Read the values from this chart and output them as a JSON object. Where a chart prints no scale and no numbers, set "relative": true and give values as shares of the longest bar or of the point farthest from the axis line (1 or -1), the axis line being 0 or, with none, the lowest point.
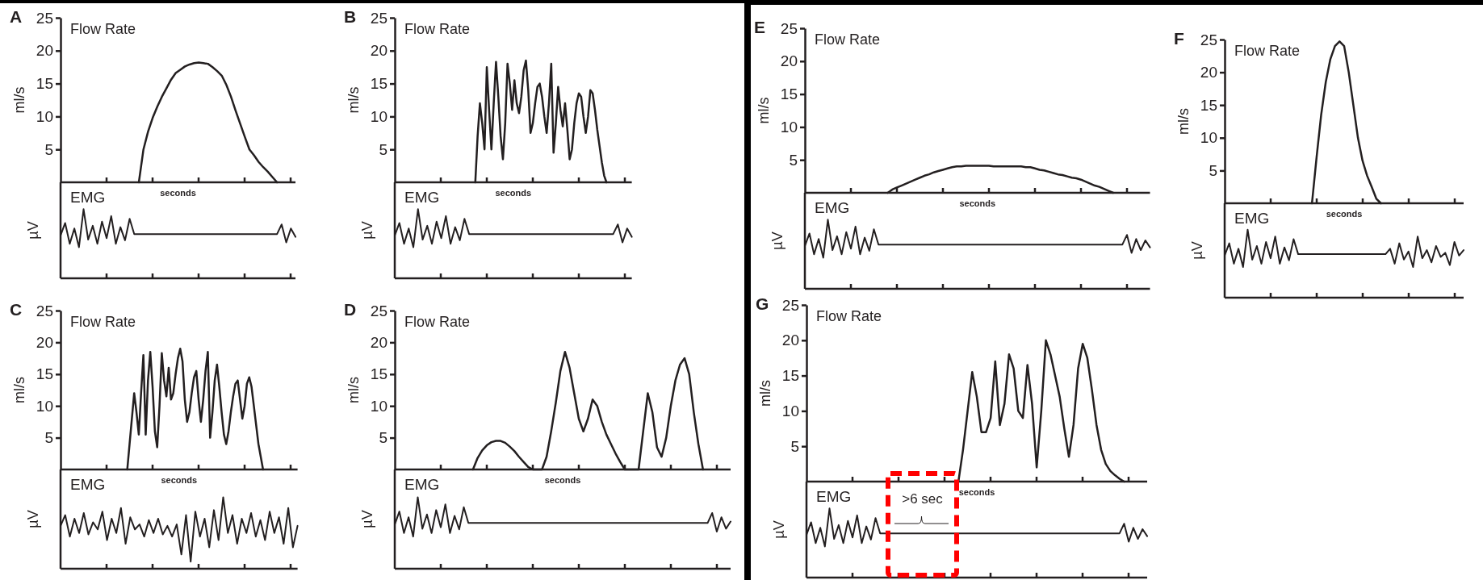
{
  "chart_data": [
    {
      "type": "line",
      "title": "A",
      "subtitle": "Flow Rate",
      "xlabel": "seconds",
      "ylabel": "ml/s",
      "ylim": [
        0,
        25
      ],
      "yticks": [
        5,
        10,
        15,
        20,
        25
      ],
      "tick_labels": "y",
      "categories": [
        null,
        null,
        null,
        null,
        null,
        null,
        null,
        null,
        null,
        null,
        null,
        null,
        null,
        null,
        null,
        null,
        null,
        null,
        null,
        null,
        null,
        null,
        null,
        null,
        null,
        null,
        null,
        null,
        null,
        null,
        null,
        null,
        null,
        null,
        null,
        null,
        null,
        null,
        null,
        null,
        null,
        null,
        null,
        null,
        null,
        null,
        null,
        null,
        null,
        null,
        null,
        null
      ],
      "series": [
        {
          "color": "#231f20",
          "values": [
            null,
            null,
            null,
            null,
            null,
            null,
            null,
            null,
            null,
            null,
            null,
            null,
            null,
            null,
            null,
            null,
            null,
            0,
            5,
            7.7,
            9.8,
            11.5,
            13,
            14.3,
            15.6,
            16.6,
            17.1,
            17.6,
            17.9,
            18.1,
            18.2,
            18.1,
            18,
            17.5,
            16.9,
            16.2,
            14.8,
            13,
            10.9,
            8.9,
            6.9,
            5,
            4.1,
            3.1,
            2.3,
            1.6,
            0.8,
            0,
            null,
            null,
            null,
            null
          ]
        }
      ]
    },
    {
      "type": "line",
      "title": "EMG",
      "ylabel": "µV",
      "relative": true,
      "tick_labels": false,
      "categories": [
        null,
        null,
        null,
        null,
        null,
        null,
        null,
        null,
        null,
        null,
        null,
        null,
        null,
        null,
        null,
        null,
        null,
        null,
        null,
        null,
        null,
        null,
        null,
        null,
        null,
        null,
        null,
        null,
        null,
        null,
        null,
        null,
        null,
        null,
        null,
        null,
        null,
        null,
        null,
        null,
        null,
        null,
        null,
        null,
        null,
        null,
        null,
        null,
        null,
        null,
        null,
        null
      ],
      "series": [
        {
          "color": "#231f20",
          "values": [
            0.62,
            0.8,
            0.5,
            0.72,
            0.45,
            1.0,
            0.56,
            0.76,
            0.5,
            0.82,
            0.58,
            0.9,
            0.5,
            0.74,
            0.55,
            0.86,
            0.64,
            0.64,
            0.64,
            0.64,
            0.64,
            0.64,
            0.64,
            0.64,
            0.64,
            0.64,
            0.64,
            0.64,
            0.64,
            0.64,
            0.64,
            0.64,
            0.64,
            0.64,
            0.64,
            0.64,
            0.64,
            0.64,
            0.64,
            0.64,
            0.64,
            0.64,
            0.64,
            0.64,
            0.64,
            0.64,
            0.64,
            0.64,
            0.78,
            0.52,
            0.72,
            0.6
          ]
        }
      ]
    },
    {
      "type": "line",
      "title": "B",
      "subtitle": "Flow Rate",
      "xlabel": "seconds",
      "ylabel": "ml/s",
      "ylim": [
        0,
        25
      ],
      "yticks": [
        5,
        10,
        15,
        20,
        25
      ],
      "tick_labels": "y",
      "categories": [
        null,
        null,
        null,
        null,
        null,
        null,
        null,
        null,
        null,
        null,
        null,
        null,
        null,
        null,
        null,
        null,
        null,
        null,
        null,
        null,
        null,
        null,
        null,
        null,
        null,
        null,
        null,
        null,
        null,
        null,
        null,
        null,
        null,
        null,
        null,
        null,
        null,
        null,
        null,
        null,
        null,
        null,
        null,
        null,
        null,
        null,
        null,
        null,
        null,
        null,
        null,
        null,
        null,
        null,
        null,
        null,
        null,
        null,
        null,
        null,
        null,
        null,
        null,
        null,
        null,
        null,
        null,
        null,
        null,
        null,
        null,
        null,
        null,
        null,
        null,
        null,
        null,
        null,
        null,
        null,
        null,
        null,
        null,
        null,
        null,
        null,
        null,
        null,
        null,
        null,
        null,
        null,
        null,
        null,
        null,
        null,
        null,
        null,
        null,
        null,
        null,
        null,
        null,
        null
      ],
      "series": [
        {
          "color": "#231f20",
          "values": [
            null,
            null,
            null,
            null,
            null,
            null,
            null,
            null,
            null,
            null,
            null,
            null,
            null,
            null,
            null,
            null,
            null,
            null,
            null,
            null,
            null,
            null,
            null,
            null,
            null,
            null,
            null,
            null,
            null,
            null,
            null,
            null,
            null,
            null,
            null,
            0,
            7,
            12,
            9,
            5,
            17.5,
            11,
            5,
            12,
            18.3,
            13,
            7,
            3.5,
            9,
            18,
            15,
            11,
            15.5,
            12,
            10.5,
            13,
            17,
            18.5,
            14,
            7.5,
            9,
            12,
            14.5,
            15,
            13,
            10,
            7.5,
            12,
            18,
            4.5,
            9,
            14.5,
            11,
            8.5,
            12,
            8,
            3.5,
            5,
            9,
            12,
            13.5,
            13,
            10,
            7.5,
            10,
            14,
            13.5,
            11,
            8,
            5.5,
            3,
            1,
            0,
            null,
            null,
            null,
            null,
            null,
            null,
            null,
            null,
            null,
            null,
            null
          ]
        }
      ]
    },
    {
      "type": "line",
      "title": "EMG",
      "ylabel": "µV",
      "relative": true,
      "tick_labels": false,
      "categories": [
        null,
        null,
        null,
        null,
        null,
        null,
        null,
        null,
        null,
        null,
        null,
        null,
        null,
        null,
        null,
        null,
        null,
        null,
        null,
        null,
        null,
        null,
        null,
        null,
        null,
        null,
        null,
        null,
        null,
        null,
        null,
        null,
        null,
        null,
        null,
        null,
        null,
        null,
        null,
        null,
        null,
        null,
        null,
        null,
        null,
        null,
        null,
        null,
        null,
        null,
        null,
        null
      ],
      "series": [
        {
          "color": "#231f20",
          "values": [
            0.62,
            0.8,
            0.5,
            0.72,
            0.45,
            1.0,
            0.56,
            0.76,
            0.5,
            0.82,
            0.58,
            0.9,
            0.5,
            0.74,
            0.55,
            0.86,
            0.64,
            0.64,
            0.64,
            0.64,
            0.64,
            0.64,
            0.64,
            0.64,
            0.64,
            0.64,
            0.64,
            0.64,
            0.64,
            0.64,
            0.64,
            0.64,
            0.64,
            0.64,
            0.64,
            0.64,
            0.64,
            0.64,
            0.64,
            0.64,
            0.64,
            0.64,
            0.64,
            0.64,
            0.64,
            0.64,
            0.64,
            0.64,
            0.78,
            0.52,
            0.72,
            0.6
          ]
        }
      ]
    },
    {
      "type": "line",
      "title": "C",
      "subtitle": "Flow Rate",
      "xlabel": "seconds",
      "ylabel": "ml/s",
      "ylim": [
        0,
        25
      ],
      "yticks": [
        5,
        10,
        15,
        20,
        25
      ],
      "tick_labels": "y",
      "categories": [
        null,
        null,
        null,
        null,
        null,
        null,
        null,
        null,
        null,
        null,
        null,
        null,
        null,
        null,
        null,
        null,
        null,
        null,
        null,
        null,
        null,
        null,
        null,
        null,
        null,
        null,
        null,
        null,
        null,
        null,
        null,
        null,
        null,
        null,
        null,
        null,
        null,
        null,
        null,
        null,
        null,
        null,
        null,
        null,
        null,
        null,
        null,
        null,
        null,
        null,
        null,
        null,
        null,
        null,
        null,
        null,
        null,
        null,
        null,
        null,
        null,
        null,
        null,
        null,
        null,
        null,
        null,
        null,
        null,
        null,
        null,
        null,
        null,
        null,
        null,
        null,
        null,
        null,
        null,
        null,
        null,
        null,
        null,
        null,
        null,
        null,
        null,
        null,
        null,
        null,
        null,
        null,
        null,
        null,
        null,
        null,
        null,
        null,
        null,
        null,
        null,
        null,
        null,
        null
      ],
      "series": [
        {
          "color": "#231f20",
          "values": [
            null,
            null,
            null,
            null,
            null,
            null,
            null,
            null,
            null,
            null,
            null,
            null,
            null,
            null,
            null,
            null,
            null,
            null,
            null,
            null,
            null,
            null,
            null,
            null,
            null,
            null,
            null,
            null,
            null,
            0,
            4,
            8,
            12,
            9,
            5.5,
            12,
            18,
            5.5,
            14,
            18.5,
            13,
            6,
            3.5,
            10,
            18.3,
            14,
            11.5,
            16,
            11,
            12,
            15,
            17.5,
            19,
            17,
            11,
            7.5,
            9,
            12,
            14.5,
            15.5,
            11,
            7.5,
            11,
            15.5,
            18.5,
            5,
            9,
            14,
            16.5,
            13,
            9,
            5.5,
            4,
            6,
            9,
            11.5,
            13.5,
            14,
            11,
            8,
            10,
            13.5,
            14.5,
            13,
            10,
            7,
            4,
            2,
            0,
            null,
            null,
            null,
            null,
            null,
            null,
            null,
            null,
            null,
            null,
            null,
            null,
            null,
            null,
            null
          ]
        }
      ]
    },
    {
      "type": "line",
      "title": "EMG",
      "ylabel": "µV",
      "relative": true,
      "tick_labels": false,
      "categories": [
        null,
        null,
        null,
        null,
        null,
        null,
        null,
        null,
        null,
        null,
        null,
        null,
        null,
        null,
        null,
        null,
        null,
        null,
        null,
        null,
        null,
        null,
        null,
        null,
        null,
        null,
        null,
        null,
        null,
        null,
        null,
        null,
        null,
        null,
        null,
        null,
        null,
        null,
        null,
        null,
        null,
        null,
        null,
        null,
        null,
        null,
        null,
        null,
        null,
        null,
        null,
        null
      ],
      "series": [
        {
          "color": "#231f20",
          "values": [
            0.6,
            0.75,
            0.45,
            0.7,
            0.5,
            0.78,
            0.48,
            0.65,
            0.55,
            0.8,
            0.4,
            0.7,
            0.5,
            0.85,
            0.35,
            0.72,
            0.55,
            0.62,
            0.45,
            0.68,
            0.5,
            0.7,
            0.48,
            0.6,
            0.45,
            0.62,
            0.2,
            0.75,
            0.1,
            0.8,
            0.45,
            0.7,
            0.3,
            0.82,
            0.4,
            1.0,
            0.5,
            0.75,
            0.35,
            0.7,
            0.5,
            0.78,
            0.45,
            0.68,
            0.4,
            0.8,
            0.5,
            0.72,
            0.35,
            0.85,
            0.3,
            0.6
          ]
        }
      ]
    },
    {
      "type": "line",
      "title": "D",
      "subtitle": "Flow Rate",
      "xlabel": "seconds",
      "ylabel": "ml/s",
      "ylim": [
        0,
        25
      ],
      "yticks": [
        5,
        10,
        15,
        20,
        25
      ],
      "tick_labels": "y",
      "categories": [
        null,
        null,
        null,
        null,
        null,
        null,
        null,
        null,
        null,
        null,
        null,
        null,
        null,
        null,
        null,
        null,
        null,
        null,
        null,
        null,
        null,
        null,
        null,
        null,
        null,
        null,
        null,
        null,
        null,
        null,
        null,
        null,
        null,
        null,
        null,
        null,
        null,
        null,
        null,
        null,
        null,
        null,
        null,
        null,
        null,
        null,
        null,
        null,
        null,
        null,
        null,
        null,
        null,
        null,
        null,
        null,
        null,
        null,
        null,
        null,
        null,
        null,
        null,
        null,
        null,
        null,
        null,
        null,
        null,
        null,
        null,
        null,
        null,
        null
      ],
      "series": [
        {
          "color": "#231f20",
          "values": [
            null,
            null,
            null,
            null,
            null,
            null,
            null,
            null,
            null,
            null,
            null,
            null,
            null,
            null,
            null,
            null,
            null,
            0,
            1.8,
            3,
            3.8,
            4.3,
            4.5,
            4.5,
            4.2,
            3.6,
            2.9,
            2,
            1.2,
            0.4,
            0,
            0,
            0,
            2,
            6,
            10.5,
            15.5,
            18.5,
            16,
            12,
            8,
            6,
            8,
            11,
            10,
            7.5,
            5.5,
            4,
            2.5,
            1.2,
            0,
            0,
            0,
            0,
            6,
            12,
            9,
            3.5,
            2,
            5,
            10,
            14,
            16.5,
            17.5,
            15,
            9,
            4,
            0,
            null,
            null,
            null,
            null,
            null,
            null
          ]
        }
      ]
    },
    {
      "type": "line",
      "title": "EMG",
      "ylabel": "µV",
      "relative": true,
      "tick_labels": false,
      "categories": [
        null,
        null,
        null,
        null,
        null,
        null,
        null,
        null,
        null,
        null,
        null,
        null,
        null,
        null,
        null,
        null,
        null,
        null,
        null,
        null,
        null,
        null,
        null,
        null,
        null,
        null,
        null,
        null,
        null,
        null,
        null,
        null,
        null,
        null,
        null,
        null,
        null,
        null,
        null,
        null,
        null,
        null,
        null,
        null,
        null,
        null,
        null,
        null,
        null,
        null,
        null,
        null,
        null,
        null,
        null,
        null,
        null,
        null,
        null,
        null,
        null,
        null,
        null,
        null,
        null,
        null,
        null,
        null,
        null,
        null,
        null,
        null,
        null,
        null
      ],
      "series": [
        {
          "color": "#231f20",
          "values": [
            0.62,
            0.8,
            0.5,
            0.72,
            0.45,
            1.0,
            0.56,
            0.76,
            0.5,
            0.82,
            0.58,
            0.9,
            0.5,
            0.74,
            0.55,
            0.86,
            0.64,
            0.64,
            0.64,
            0.64,
            0.64,
            0.64,
            0.64,
            0.64,
            0.64,
            0.64,
            0.64,
            0.64,
            0.64,
            0.64,
            0.64,
            0.64,
            0.64,
            0.64,
            0.64,
            0.64,
            0.64,
            0.64,
            0.64,
            0.64,
            0.64,
            0.64,
            0.64,
            0.64,
            0.64,
            0.64,
            0.64,
            0.64,
            0.64,
            0.64,
            0.64,
            0.64,
            0.64,
            0.64,
            0.64,
            0.64,
            0.64,
            0.64,
            0.64,
            0.64,
            0.64,
            0.64,
            0.64,
            0.64,
            0.64,
            0.64,
            0.64,
            0.64,
            0.64,
            0.78,
            0.52,
            0.72,
            0.56,
            0.66
          ]
        }
      ]
    },
    {
      "type": "line",
      "title": "E",
      "subtitle": "Flow Rate",
      "xlabel": "seconds",
      "ylabel": "ml/s",
      "ylim": [
        0,
        25
      ],
      "yticks": [
        5,
        10,
        15,
        20,
        25
      ],
      "tick_labels": "y",
      "categories": [
        null,
        null,
        null,
        null,
        null,
        null,
        null,
        null,
        null,
        null,
        null,
        null,
        null,
        null,
        null,
        null,
        null,
        null,
        null,
        null,
        null,
        null,
        null,
        null,
        null,
        null,
        null,
        null,
        null,
        null,
        null,
        null,
        null,
        null,
        null,
        null,
        null,
        null,
        null,
        null,
        null,
        null,
        null,
        null,
        null,
        null,
        null,
        null,
        null,
        null,
        null,
        null,
        null,
        null,
        null,
        null,
        null,
        null,
        null,
        null,
        null,
        null,
        null,
        null,
        null,
        null,
        null,
        null,
        null,
        null,
        null,
        null,
        null,
        null,
        null,
        null
      ],
      "series": [
        {
          "color": "#231f20",
          "values": [
            null,
            null,
            null,
            null,
            null,
            null,
            null,
            null,
            null,
            null,
            null,
            null,
            null,
            null,
            null,
            null,
            null,
            null,
            0,
            0.5,
            0.8,
            1.1,
            1.4,
            1.7,
            2,
            2.3,
            2.6,
            2.8,
            3.1,
            3.3,
            3.5,
            3.7,
            3.9,
            4,
            4,
            4.1,
            4.1,
            4.1,
            4.1,
            4.1,
            4.1,
            4,
            4,
            4,
            4,
            4,
            4,
            4,
            3.9,
            3.9,
            3.7,
            3.5,
            3.4,
            3.2,
            3,
            2.8,
            2.7,
            2.5,
            2.3,
            2.2,
            2,
            1.7,
            1.4,
            1.1,
            0.9,
            0.6,
            0.3,
            0,
            null,
            null,
            null,
            null,
            null,
            null,
            null,
            null
          ]
        }
      ]
    },
    {
      "type": "line",
      "title": "EMG",
      "ylabel": "µV",
      "relative": true,
      "tick_labels": false,
      "categories": [
        null,
        null,
        null,
        null,
        null,
        null,
        null,
        null,
        null,
        null,
        null,
        null,
        null,
        null,
        null,
        null,
        null,
        null,
        null,
        null,
        null,
        null,
        null,
        null,
        null,
        null,
        null,
        null,
        null,
        null,
        null,
        null,
        null,
        null,
        null,
        null,
        null,
        null,
        null,
        null,
        null,
        null,
        null,
        null,
        null,
        null,
        null,
        null,
        null,
        null,
        null,
        null,
        null,
        null,
        null,
        null,
        null,
        null,
        null,
        null,
        null,
        null,
        null,
        null,
        null,
        null,
        null,
        null,
        null,
        null,
        null,
        null,
        null,
        null,
        null,
        null
      ],
      "series": [
        {
          "color": "#231f20",
          "values": [
            0.62,
            0.8,
            0.5,
            0.72,
            0.45,
            1.0,
            0.56,
            0.76,
            0.5,
            0.82,
            0.58,
            0.9,
            0.5,
            0.74,
            0.55,
            0.86,
            0.64,
            0.64,
            0.64,
            0.64,
            0.64,
            0.64,
            0.64,
            0.64,
            0.64,
            0.64,
            0.64,
            0.64,
            0.64,
            0.64,
            0.64,
            0.64,
            0.64,
            0.64,
            0.64,
            0.64,
            0.64,
            0.64,
            0.64,
            0.64,
            0.64,
            0.64,
            0.64,
            0.64,
            0.64,
            0.64,
            0.64,
            0.64,
            0.64,
            0.64,
            0.64,
            0.64,
            0.64,
            0.64,
            0.64,
            0.64,
            0.64,
            0.64,
            0.64,
            0.64,
            0.64,
            0.64,
            0.64,
            0.64,
            0.64,
            0.64,
            0.64,
            0.64,
            0.64,
            0.64,
            0.78,
            0.52,
            0.72,
            0.56,
            0.7,
            0.6
          ]
        }
      ]
    },
    {
      "type": "line",
      "title": "F",
      "subtitle": "Flow Rate",
      "xlabel": "seconds",
      "ylabel": "ml/s",
      "ylim": [
        0,
        25
      ],
      "yticks": [
        5,
        10,
        15,
        20,
        25
      ],
      "tick_labels": "y",
      "categories": [
        null,
        null,
        null,
        null,
        null,
        null,
        null,
        null,
        null,
        null,
        null,
        null,
        null,
        null,
        null,
        null,
        null,
        null,
        null,
        null,
        null,
        null,
        null,
        null,
        null,
        null,
        null,
        null,
        null,
        null,
        null,
        null,
        null,
        null,
        null,
        null,
        null,
        null,
        null,
        null,
        null,
        null,
        null,
        null,
        null,
        null,
        null,
        null,
        null,
        null,
        null,
        null,
        null
      ],
      "series": [
        {
          "color": "#231f20",
          "values": [
            null,
            null,
            null,
            null,
            null,
            null,
            null,
            null,
            null,
            null,
            null,
            null,
            null,
            null,
            null,
            null,
            null,
            null,
            null,
            0,
            7,
            13.5,
            18.5,
            22,
            24,
            24.7,
            24,
            20,
            15,
            10,
            6.5,
            4.2,
            2.5,
            0.7,
            0,
            null,
            null,
            null,
            null,
            null,
            null,
            null,
            null,
            null,
            null,
            null,
            null,
            null,
            null,
            null,
            null,
            null,
            null
          ]
        }
      ]
    },
    {
      "type": "line",
      "title": "EMG",
      "ylabel": "µV",
      "relative": true,
      "tick_labels": false,
      "categories": [
        null,
        null,
        null,
        null,
        null,
        null,
        null,
        null,
        null,
        null,
        null,
        null,
        null,
        null,
        null,
        null,
        null,
        null,
        null,
        null,
        null,
        null,
        null,
        null,
        null,
        null,
        null,
        null,
        null,
        null,
        null,
        null,
        null,
        null,
        null,
        null,
        null,
        null,
        null,
        null,
        null,
        null,
        null,
        null,
        null,
        null,
        null,
        null,
        null,
        null,
        null,
        null,
        null
      ],
      "series": [
        {
          "color": "#231f20",
          "values": [
            0.62,
            0.8,
            0.5,
            0.72,
            0.45,
            1.0,
            0.56,
            0.76,
            0.5,
            0.82,
            0.58,
            0.9,
            0.5,
            0.74,
            0.55,
            0.86,
            0.64,
            0.64,
            0.64,
            0.64,
            0.64,
            0.64,
            0.64,
            0.64,
            0.64,
            0.64,
            0.64,
            0.64,
            0.64,
            0.64,
            0.64,
            0.64,
            0.64,
            0.64,
            0.64,
            0.64,
            0.72,
            0.5,
            0.8,
            0.56,
            0.68,
            0.45,
            0.9,
            0.58,
            0.7,
            0.52,
            0.76,
            0.6,
            0.66,
            0.48,
            0.82,
            0.62,
            0.7
          ]
        }
      ]
    },
    {
      "type": "line",
      "title": "G",
      "subtitle": "Flow Rate",
      "xlabel": "seconds",
      "ylabel": "ml/s",
      "ylim": [
        0,
        25
      ],
      "yticks": [
        5,
        10,
        15,
        20,
        25
      ],
      "tick_labels": "y",
      "categories": [
        null,
        null,
        null,
        null,
        null,
        null,
        null,
        null,
        null,
        null,
        null,
        null,
        null,
        null,
        null,
        null,
        null,
        null,
        null,
        null,
        null,
        null,
        null,
        null,
        null,
        null,
        null,
        null,
        null,
        null,
        null,
        null,
        null,
        null,
        null,
        null,
        null,
        null,
        null,
        null,
        null,
        null,
        null,
        null,
        null,
        null,
        null,
        null,
        null,
        null,
        null,
        null,
        null,
        null,
        null,
        null,
        null,
        null,
        null,
        null,
        null,
        null,
        null,
        null,
        null,
        null,
        null,
        null,
        null,
        null,
        null,
        null,
        null,
        null,
        null
      ],
      "series": [
        {
          "color": "#231f20",
          "values": [
            null,
            null,
            null,
            null,
            null,
            null,
            null,
            null,
            null,
            null,
            null,
            null,
            null,
            null,
            null,
            null,
            null,
            null,
            null,
            null,
            null,
            null,
            null,
            null,
            null,
            null,
            null,
            null,
            null,
            null,
            null,
            null,
            null,
            0,
            4.5,
            10,
            15.5,
            12,
            7,
            7,
            9,
            17,
            8,
            11,
            18,
            16,
            10,
            9,
            16.5,
            11,
            2,
            10,
            20,
            18,
            15,
            12,
            7.5,
            3.5,
            8,
            16,
            19.5,
            17.5,
            13,
            8,
            4.5,
            2.5,
            1.5,
            0.9,
            0.4,
            0,
            null,
            null,
            null,
            null,
            null
          ]
        }
      ]
    },
    {
      "type": "line",
      "title": "EMG",
      "ylabel": "µV",
      "relative": true,
      "tick_labels": false,
      "annotations": [
        ">6 sec"
      ],
      "categories": [
        null,
        null,
        null,
        null,
        null,
        null,
        null,
        null,
        null,
        null,
        null,
        null,
        null,
        null,
        null,
        null,
        null,
        null,
        null,
        null,
        null,
        null,
        null,
        null,
        null,
        null,
        null,
        null,
        null,
        null,
        null,
        null,
        null,
        null,
        null,
        null,
        null,
        null,
        null,
        null,
        null,
        null,
        null,
        null,
        null,
        null,
        null,
        null,
        null,
        null,
        null,
        null,
        null,
        null,
        null,
        null,
        null,
        null,
        null,
        null,
        null,
        null,
        null,
        null,
        null,
        null,
        null,
        null,
        null,
        null,
        null,
        null,
        null,
        null,
        null
      ],
      "series": [
        {
          "color": "#231f20",
          "values": [
            0.62,
            0.8,
            0.5,
            0.72,
            0.45,
            1.0,
            0.56,
            0.76,
            0.5,
            0.82,
            0.58,
            0.9,
            0.5,
            0.74,
            0.55,
            0.86,
            0.64,
            0.64,
            0.64,
            0.64,
            0.64,
            0.64,
            0.64,
            0.64,
            0.64,
            0.64,
            0.64,
            0.64,
            0.64,
            0.64,
            0.64,
            0.64,
            0.64,
            0.64,
            0.64,
            0.64,
            0.64,
            0.64,
            0.64,
            0.64,
            0.64,
            0.64,
            0.64,
            0.64,
            0.64,
            0.64,
            0.64,
            0.64,
            0.64,
            0.64,
            0.64,
            0.64,
            0.64,
            0.64,
            0.64,
            0.64,
            0.64,
            0.64,
            0.64,
            0.64,
            0.64,
            0.64,
            0.64,
            0.64,
            0.64,
            0.64,
            0.64,
            0.64,
            0.64,
            0.78,
            0.52,
            0.72,
            0.56,
            0.7,
            0.6
          ]
        }
      ]
    }
  ]
}
